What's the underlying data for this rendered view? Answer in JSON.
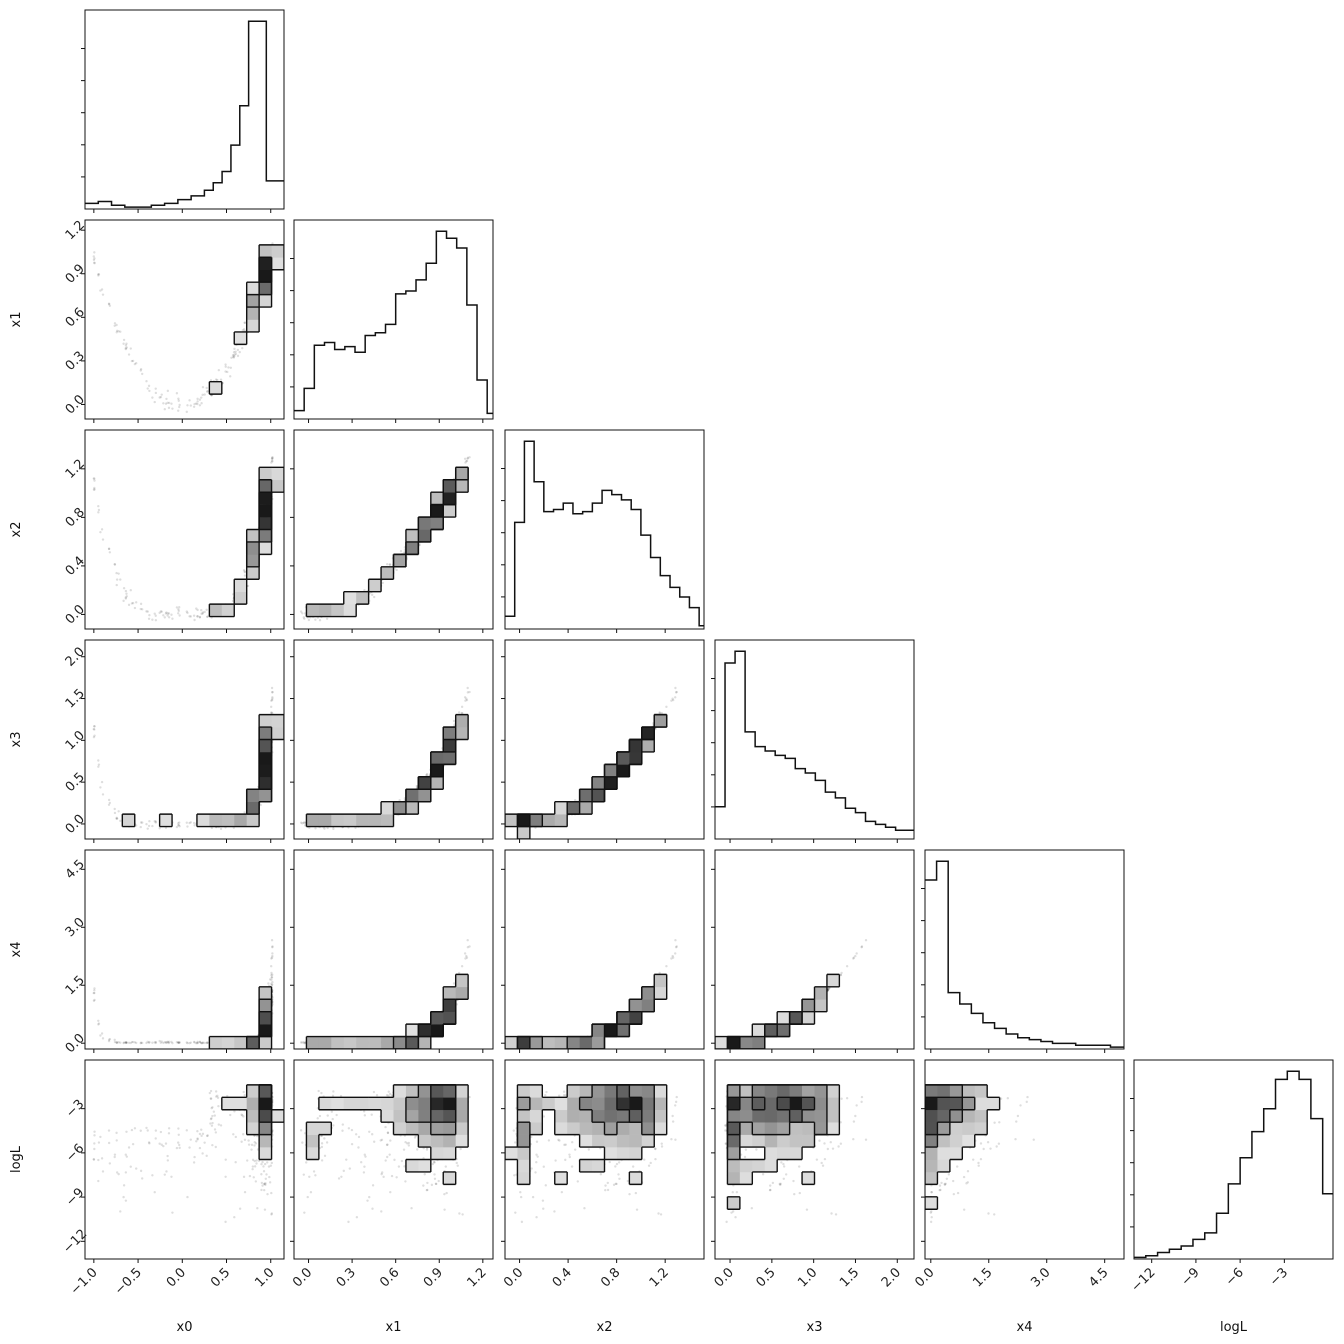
{
  "chart_data": {
    "type": "corner",
    "parameters": [
      {
        "name": "x0",
        "label": "x0",
        "range": [
          -1.1,
          1.15
        ],
        "ticks": [
          -1.0,
          -0.5,
          0.0,
          0.5,
          1.0
        ],
        "tick_labels": [
          "−1.0",
          "−0.5",
          "0.0",
          "0.5",
          "1.0"
        ]
      },
      {
        "name": "x1",
        "label": "x1",
        "range": [
          -0.1,
          1.27
        ],
        "ticks": [
          0.0,
          0.3,
          0.6,
          0.9,
          1.2
        ],
        "tick_labels": [
          "0.0",
          "0.3",
          "0.6",
          "0.9",
          "1.2"
        ]
      },
      {
        "name": "x2",
        "label": "x2",
        "range": [
          -0.12,
          1.52
        ],
        "ticks": [
          0.0,
          0.4,
          0.8,
          1.2
        ],
        "tick_labels": [
          "0.0",
          "0.4",
          "0.8",
          "1.2"
        ]
      },
      {
        "name": "x3",
        "label": "x3",
        "range": [
          -0.18,
          2.2
        ],
        "ticks": [
          0.0,
          0.5,
          1.0,
          1.5,
          2.0
        ],
        "tick_labels": [
          "0.0",
          "0.5",
          "1.0",
          "1.5",
          "2.0"
        ]
      },
      {
        "name": "x4",
        "label": "x4",
        "range": [
          -0.15,
          5.0
        ],
        "ticks": [
          0.0,
          1.5,
          3.0,
          4.5
        ],
        "tick_labels": [
          "0.0",
          "1.5",
          "3.0",
          "4.5"
        ]
      },
      {
        "name": "logL",
        "label": "logL",
        "range": [
          -13.2,
          0.3
        ],
        "ticks": [
          -12,
          -9,
          -6,
          -3
        ],
        "tick_labels": [
          "−12",
          "−9",
          "−6",
          "−3"
        ]
      }
    ],
    "histograms": [
      {
        "param": "x0",
        "bin_edges": [
          -1.1,
          -0.95,
          -0.8,
          -0.65,
          -0.5,
          -0.35,
          -0.2,
          -0.05,
          0.1,
          0.25,
          0.35,
          0.45,
          0.55,
          0.65,
          0.75,
          0.85,
          0.95,
          1.05,
          1.15
        ],
        "counts": [
          3,
          4,
          2,
          1,
          1,
          2,
          3,
          5,
          7,
          10,
          14,
          20,
          34,
          55,
          100,
          100,
          15,
          15
        ]
      },
      {
        "param": "x1",
        "bin_edges": [
          -0.1,
          -0.03,
          0.04,
          0.11,
          0.18,
          0.25,
          0.32,
          0.39,
          0.46,
          0.53,
          0.6,
          0.67,
          0.74,
          0.81,
          0.88,
          0.95,
          1.02,
          1.09,
          1.16,
          1.23,
          1.27
        ],
        "counts": [
          6,
          22,
          53,
          55,
          50,
          52,
          48,
          60,
          62,
          68,
          90,
          92,
          100,
          112,
          135,
          130,
          123,
          82,
          28,
          4
        ]
      },
      {
        "param": "x2",
        "bin_edges": [
          -0.12,
          -0.04,
          0.04,
          0.12,
          0.2,
          0.28,
          0.36,
          0.44,
          0.52,
          0.6,
          0.68,
          0.76,
          0.84,
          0.92,
          1.0,
          1.08,
          1.16,
          1.24,
          1.32,
          1.4,
          1.48,
          1.52
        ],
        "counts": [
          12,
          100,
          176,
          138,
          110,
          112,
          118,
          108,
          110,
          118,
          130,
          126,
          121,
          112,
          88,
          67,
          50,
          39,
          30,
          20,
          3
        ]
      },
      {
        "param": "x3",
        "bin_edges": [
          -0.18,
          -0.06,
          0.06,
          0.18,
          0.3,
          0.42,
          0.54,
          0.66,
          0.78,
          0.9,
          1.02,
          1.14,
          1.26,
          1.38,
          1.5,
          1.62,
          1.74,
          1.86,
          1.98,
          2.2
        ],
        "counts": [
          22,
          120,
          128,
          73,
          63,
          60,
          57,
          55,
          48,
          45,
          40,
          32,
          28,
          21,
          18,
          12,
          10,
          8,
          6
        ]
      },
      {
        "param": "x4",
        "bin_edges": [
          -0.15,
          0.15,
          0.45,
          0.75,
          1.05,
          1.35,
          1.65,
          1.95,
          2.25,
          2.55,
          2.85,
          3.15,
          3.45,
          3.75,
          4.05,
          4.35,
          4.65,
          5.0
        ],
        "counts": [
          90,
          100,
          30,
          24,
          19,
          14,
          11,
          8,
          6,
          5,
          4,
          3,
          3,
          2,
          2,
          2,
          1
        ]
      },
      {
        "param": "logL",
        "bin_edges": [
          -13.2,
          -12.4,
          -11.6,
          -10.8,
          -10.0,
          -9.2,
          -8.4,
          -7.6,
          -6.8,
          -6.0,
          -5.2,
          -4.4,
          -3.6,
          -2.8,
          -2.0,
          -1.2,
          -0.4,
          0.3
        ],
        "counts": [
          1,
          2,
          4,
          6,
          8,
          12,
          16,
          28,
          46,
          62,
          78,
          92,
          110,
          115,
          110,
          86,
          40
        ]
      }
    ]
  }
}
